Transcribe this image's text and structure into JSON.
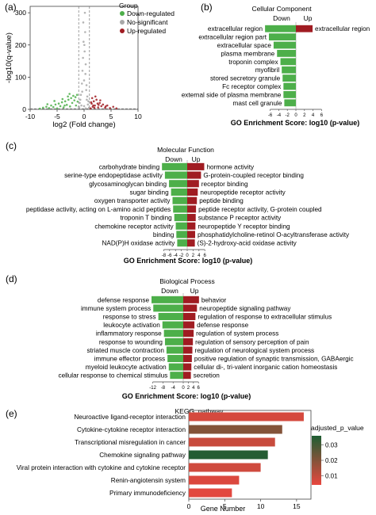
{
  "colors": {
    "down": "#4daf4a",
    "up": "#a01c22",
    "ns": "#a8a8a8",
    "kegg_low": "#e8473f",
    "kegg_high": "#1e5e33"
  },
  "chart_data": [
    {
      "panel": "(a)",
      "type": "scatter",
      "xlabel": "log2 (Fold change)",
      "ylabel": "-log10(q-value)",
      "xlim": [
        -10,
        10
      ],
      "ylim": [
        0,
        320
      ],
      "xticks": [
        -10,
        -5,
        0,
        5,
        10
      ],
      "yticks": [
        0,
        100,
        200,
        300
      ],
      "legend_title": "Group",
      "legend": [
        "Down-regulated",
        "No-significant",
        "Up-regulated"
      ],
      "series": [
        {
          "name": "Down-regulated",
          "points": [
            [
              -8.2,
              2
            ],
            [
              -7.6,
              5
            ],
            [
              -7,
              8
            ],
            [
              -6.5,
              4
            ],
            [
              -6.1,
              12
            ],
            [
              -5.7,
              7
            ],
            [
              -5.3,
              15
            ],
            [
              -5,
              3
            ],
            [
              -4.7,
              18
            ],
            [
              -4.4,
              10
            ],
            [
              -4.1,
              22
            ],
            [
              -3.8,
              6
            ],
            [
              -3.5,
              25
            ],
            [
              -3.2,
              14
            ],
            [
              -2.9,
              30
            ],
            [
              -2.6,
              9
            ],
            [
              -2.4,
              35
            ],
            [
              -2.2,
              20
            ],
            [
              -2,
              42
            ],
            [
              -1.8,
              28
            ],
            [
              -1.6,
              38
            ],
            [
              -1.5,
              12
            ],
            [
              -1.3,
              45
            ],
            [
              -1.2,
              24
            ],
            [
              -3,
              40
            ],
            [
              -4,
              32
            ],
            [
              -5.5,
              26
            ],
            [
              -2.7,
              48
            ],
            [
              -3.6,
              12
            ],
            [
              -6.8,
              16
            ]
          ]
        },
        {
          "name": "No-significant",
          "points": [
            [
              -1,
              8
            ],
            [
              -0.8,
              20
            ],
            [
              -0.6,
              45
            ],
            [
              -0.4,
              80
            ],
            [
              -0.3,
              120
            ],
            [
              -0.2,
              160
            ],
            [
              -0.1,
              210
            ],
            [
              0,
              90
            ],
            [
              0.1,
              180
            ],
            [
              0.2,
              240
            ],
            [
              0.3,
              140
            ],
            [
              0.4,
              60
            ],
            [
              0.5,
              30
            ],
            [
              0.7,
              15
            ],
            [
              0.9,
              5
            ],
            [
              -0.5,
              12
            ],
            [
              0.6,
              40
            ],
            [
              0.15,
              300
            ],
            [
              -0.15,
              270
            ],
            [
              0.05,
              200
            ],
            [
              -0.7,
              30
            ],
            [
              0.8,
              25
            ],
            [
              -0.9,
              6
            ],
            [
              0.25,
              110
            ],
            [
              -0.35,
              55
            ],
            [
              0.45,
              75
            ],
            [
              0,
              10
            ],
            [
              0.3,
              3
            ]
          ]
        },
        {
          "name": "Up-regulated",
          "points": [
            [
              1.2,
              3
            ],
            [
              1.4,
              18
            ],
            [
              1.6,
              8
            ],
            [
              1.8,
              25
            ],
            [
              2,
              12
            ],
            [
              2.3,
              30
            ],
            [
              2.6,
              6
            ],
            [
              2.9,
              20
            ],
            [
              3.2,
              10
            ],
            [
              3.5,
              15
            ],
            [
              3.9,
              5
            ],
            [
              4.3,
              12
            ],
            [
              4.8,
              4
            ],
            [
              5.4,
              8
            ],
            [
              6,
              3
            ],
            [
              1.5,
              35
            ],
            [
              2.1,
              40
            ],
            [
              2.7,
              14
            ],
            [
              1.3,
              22
            ],
            [
              3,
              28
            ],
            [
              1.9,
              5
            ],
            [
              2.5,
              18
            ],
            [
              4,
              9
            ],
            [
              1.7,
              12
            ]
          ]
        }
      ]
    },
    {
      "panel": "(b)",
      "type": "bar",
      "title": "Cellular Component",
      "down_label": "Down",
      "up_label": "Up",
      "xlabel": "GO Enrichment Score: log10 (p-value)",
      "xticks": [
        -6,
        -4,
        -2,
        0,
        2,
        4,
        6
      ],
      "down_terms": [
        "extracellular region",
        "extracellular region part",
        "extracellular space",
        "plasma membrane",
        "troponin complex",
        "myofibril",
        "stored secretory granule",
        "Fc receptor complex",
        "external side of plasma membrane",
        "mast cell granule"
      ],
      "down_values": [
        -7.2,
        -6.3,
        -5.2,
        -4.4,
        -3.6,
        -3.3,
        -3.1,
        -2.9,
        -2.9,
        -2.7
      ],
      "up_terms": [
        "extracellular region"
      ],
      "up_values": [
        3.9
      ]
    },
    {
      "panel": "(c)",
      "type": "bar",
      "title": "Molecular Function",
      "down_label": "Down",
      "up_label": "Up",
      "xlabel": "GO Enrichment Score: log10 (p-value)",
      "xticks": [
        -8,
        -6,
        -4,
        -2,
        0,
        2,
        4,
        6
      ],
      "down_terms": [
        "carbohydrate binding",
        "serine-type endopeptidase activity",
        "glycosaminoglycan binding",
        "sugar binding",
        "oxygen transporter activity",
        "peptidase activity, acting on L-amino acid peptides",
        "troponin T binding",
        "chemokine receptor activity",
        "binding",
        "NAD(P)H oxidase activity"
      ],
      "down_values": [
        -8.6,
        -7.6,
        -6.2,
        -5.5,
        -5.0,
        -4.8,
        -4.4,
        -3.9,
        -3.7,
        -3.4
      ],
      "up_terms": [
        "hormone activity",
        "G-protein-coupled receptor binding",
        "receptor binding",
        "neuropeptide receptor activity",
        "peptide binding",
        "peptide receptor activity, G-protein coupled",
        "substance P receptor activity",
        "neuropeptide Y receptor binding",
        "phosphatidylcholine-retinol O-acyltransferase activity",
        "(S)-2-hydroxy-acid oxidase activity"
      ],
      "up_values": [
        5.8,
        4.7,
        4.0,
        3.6,
        3.3,
        3.0,
        2.9,
        2.8,
        2.7,
        2.6
      ]
    },
    {
      "panel": "(d)",
      "type": "bar",
      "title": "Biological Process",
      "down_label": "Down",
      "up_label": "Up",
      "xlabel": "GO Enrichment Score: log10 (p-value)",
      "xticks": [
        -12,
        -8,
        -4,
        0,
        2,
        4,
        6
      ],
      "down_terms": [
        "defense response",
        "immune system process",
        "response to stress",
        "leukocyte activation",
        "inflammatory response",
        "response to wounding",
        "striated muscle contraction",
        "immune effector process",
        "myeloid leukocyte activation",
        "cellular response to chemical stimulus"
      ],
      "down_values": [
        -12.5,
        -11.8,
        -9.8,
        -8.2,
        -7.6,
        -7.2,
        -6.6,
        -6.2,
        -5.7,
        -5.2
      ],
      "up_terms": [
        "behavior",
        "neuropeptide signaling pathway",
        "regulation of response to extracellular stimulus",
        "defense response",
        "regulation of system process",
        "regulation of sensory perception of pain",
        "regulation of neurological system process",
        "positive regulation of synaptic transmission, GABAergic",
        "cellular di-, tri-valent inorganic cation homeostasis",
        "secretion"
      ],
      "up_values": [
        6.2,
        5.4,
        4.8,
        4.4,
        4.1,
        3.8,
        3.6,
        3.4,
        3.2,
        3.0
      ]
    },
    {
      "panel": "(e)",
      "type": "bar",
      "title": "KEGG_pathway",
      "xlabel": "Gene Number",
      "xlim": [
        0,
        17
      ],
      "xticks": [
        0,
        5,
        10,
        15
      ],
      "categories": [
        "Neuroactive ligand-receptor interaction",
        "Cytokine-cytokine receptor interaction",
        "Transcriptional misregulation in cancer",
        "Chemokine signaling pathway",
        "Viral protein interaction with cytokine and cytokine receptor",
        "Renin-angiotensin system",
        "Primary immunodeficiency"
      ],
      "values": [
        16,
        13,
        12,
        11,
        10,
        7,
        6
      ],
      "adjusted_p_value": [
        0.007,
        0.02,
        0.009,
        0.035,
        0.008,
        0.006,
        0.005
      ],
      "colorbar_title": "adjusted_p_value",
      "colorbar_ticks": [
        0.03,
        0.02,
        0.01
      ],
      "colorbar_range": [
        0.004,
        0.036
      ]
    }
  ]
}
